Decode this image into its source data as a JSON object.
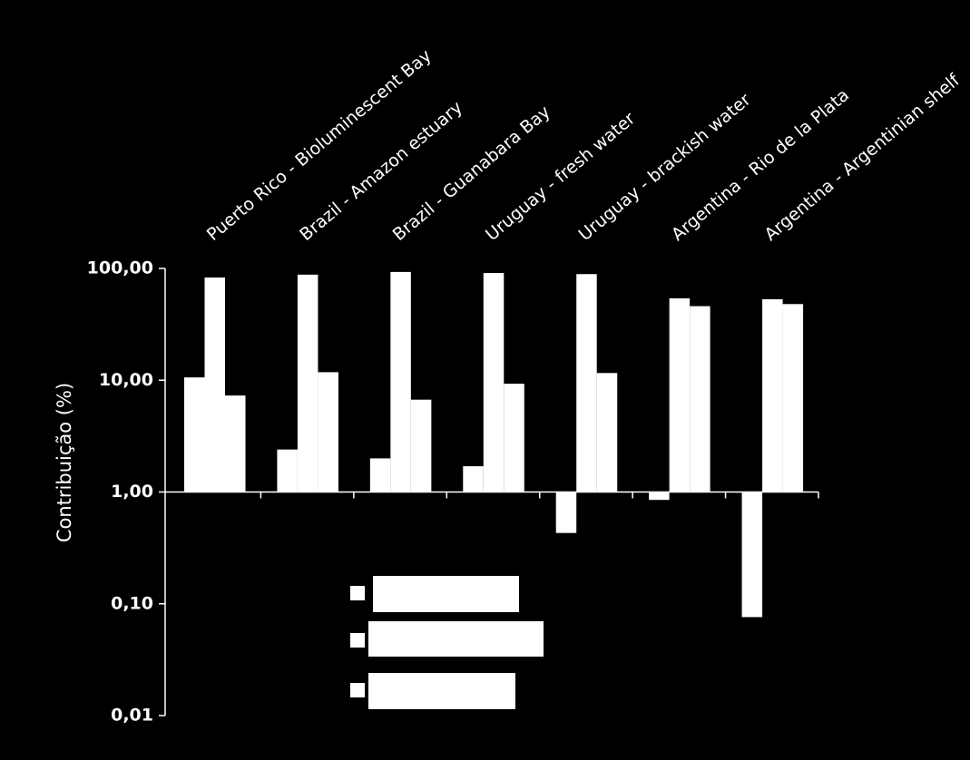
{
  "chart_data": {
    "type": "bar",
    "y_label": "Contribuição (%)",
    "log_scale": true,
    "categories": [
      "Puerto Rico - Bioluminescent Bay",
      "Brazil - Amazon estuary",
      "Brazil - Guanabara Bay",
      "Uruguay - fresh water",
      "Uruguay - brackish water",
      "Argentina - Rio de la Plata",
      "Argentina - Argentinian shelf"
    ],
    "series": [
      {
        "color": "#ffffff",
        "values": [
          10.6,
          2.4,
          2.0,
          1.7,
          0.43,
          0.85,
          0.076
        ]
      },
      {
        "color": "#ffffff",
        "values": [
          83,
          88,
          93,
          91,
          89,
          54,
          53
        ]
      },
      {
        "color": "#ffffff",
        "values": [
          7.3,
          11.8,
          6.7,
          9.3,
          11.6,
          46,
          48
        ]
      }
    ],
    "ylim": [
      0.01,
      100
    ],
    "yticks": [
      {
        "value": 0.01,
        "label": "0,01"
      },
      {
        "value": 0.1,
        "label": "0,10"
      },
      {
        "value": 1,
        "label": "1,00"
      },
      {
        "value": 10,
        "label": "10,00"
      },
      {
        "value": 100,
        "label": "100,00"
      }
    ],
    "baseline": 1
  }
}
